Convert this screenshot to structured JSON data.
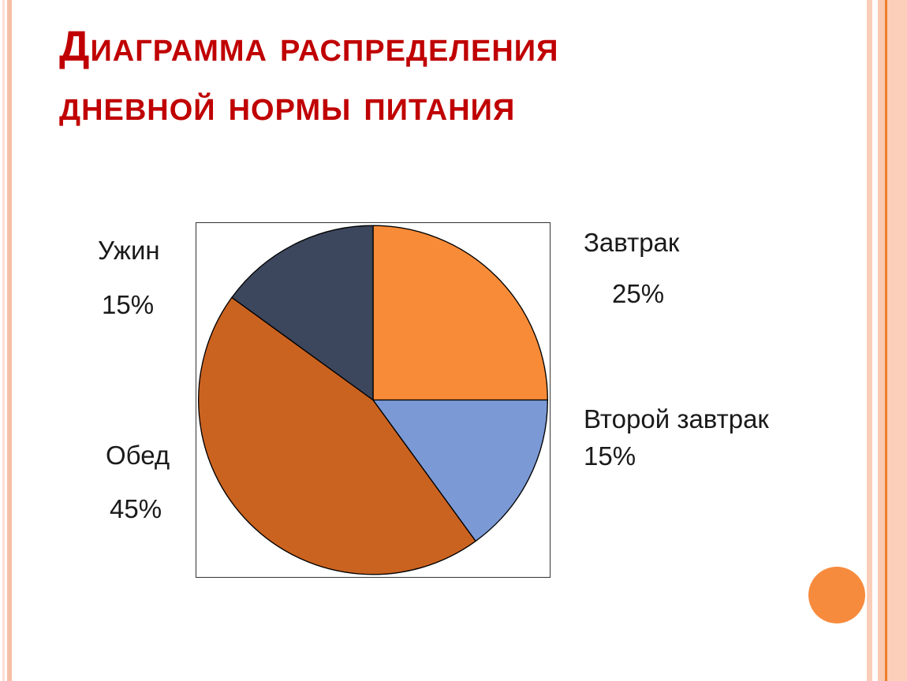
{
  "slide": {
    "title": {
      "line1": "Диаграмма распределения",
      "line2": "дневной нормы питания",
      "color": "#c00000"
    }
  },
  "chart_data": {
    "type": "pie",
    "title": "Диаграмма распределения дневной нормы питания",
    "start_angle_deg": 0,
    "direction": "clockwise",
    "legend_position": "labels-around-chart",
    "slices": [
      {
        "key": "breakfast",
        "label": "Завтрак",
        "value": 25,
        "color": "#f78b38"
      },
      {
        "key": "second-breakfast",
        "label": "Второй завтрак",
        "value": 15,
        "color": "#7a99d5"
      },
      {
        "key": "lunch",
        "label": "Обед",
        "value": 45,
        "color": "#cb6320"
      },
      {
        "key": "dinner",
        "label": "Ужин",
        "value": 15,
        "color": "#3c465c"
      }
    ]
  },
  "labels": {
    "breakfast": {
      "name": "Завтрак",
      "pct": "25%"
    },
    "second_breakfast": {
      "name": "Второй завтрак",
      "pct": "15%"
    },
    "lunch": {
      "name": "Обед",
      "pct": "45%"
    },
    "dinner": {
      "name": "Ужин",
      "pct": "15%"
    }
  },
  "decor": {
    "accent_orange": "#f78b3d",
    "stripe_salmon": "#f6bfa5",
    "stripe_pale": "#fbe0d6",
    "stripe_line_orange": "#ef7f2a"
  }
}
